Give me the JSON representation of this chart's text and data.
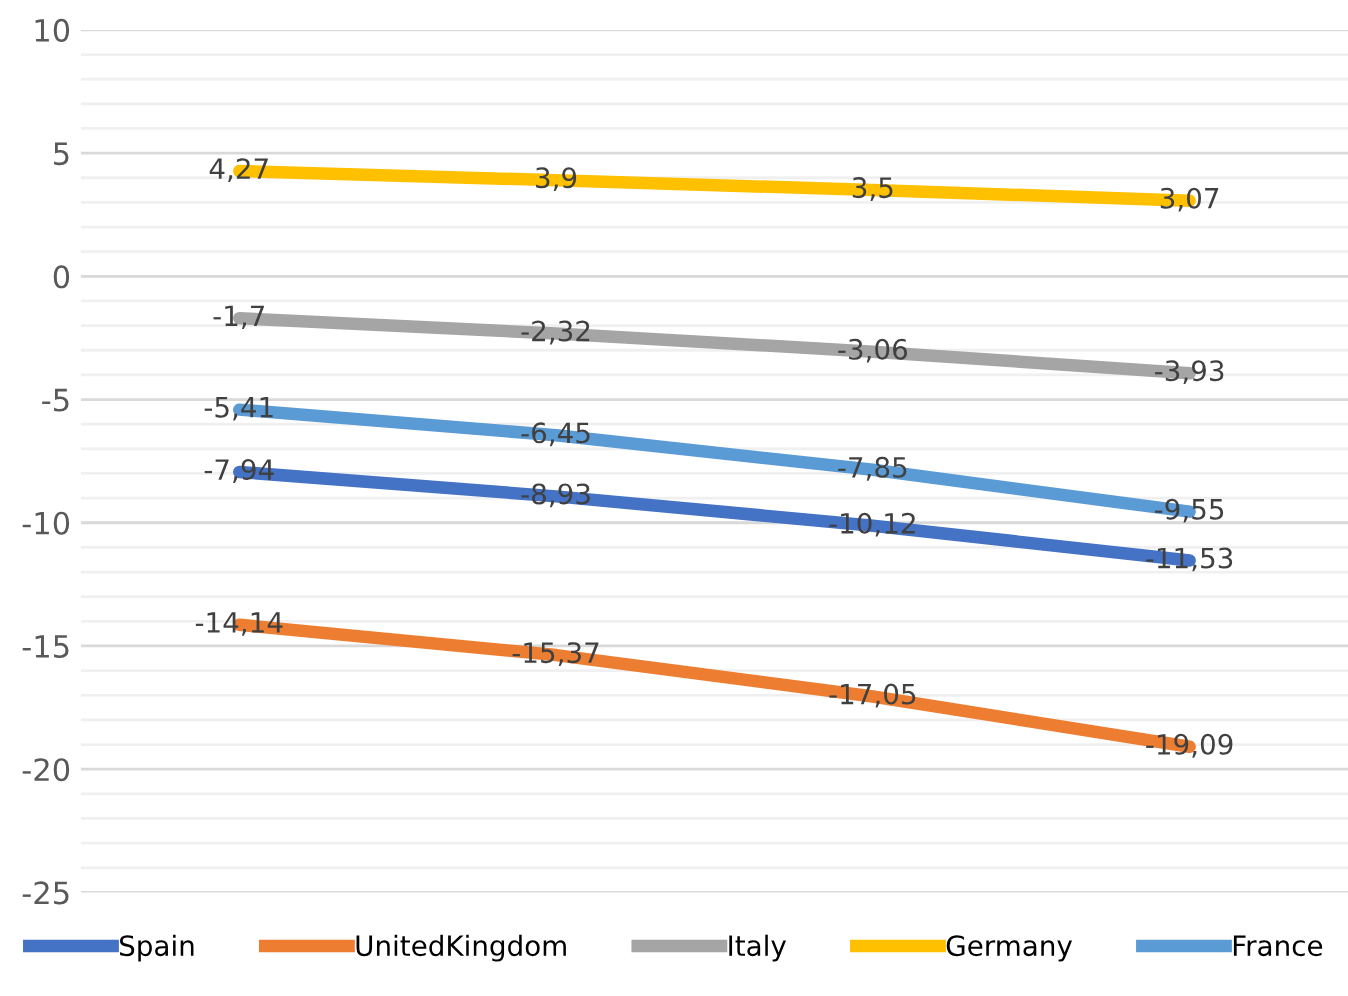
{
  "chart_data": {
    "type": "line",
    "categories": [
      null,
      null,
      null,
      null
    ],
    "series": [
      {
        "name": "Spain",
        "color": "#4472c4",
        "values": [
          -7.94,
          -8.93,
          -10.12,
          -11.53
        ],
        "value_labels": [
          "-7,94",
          "-8,93",
          "-10,12",
          "-11,53"
        ]
      },
      {
        "name": "UnitedKingdom",
        "color": "#ed7d31",
        "values": [
          -14.14,
          -15.37,
          -17.05,
          -19.09
        ],
        "value_labels": [
          "-14,14",
          "-15,37",
          "-17,05",
          "-19,09"
        ]
      },
      {
        "name": "Italy",
        "color": "#a5a5a5",
        "values": [
          -1.7,
          -2.32,
          -3.06,
          -3.93
        ],
        "value_labels": [
          "-1,7",
          "-2,32",
          "-3,06",
          "-3,93"
        ]
      },
      {
        "name": "Germany",
        "color": "#ffc000",
        "values": [
          4.27,
          3.9,
          3.5,
          3.07
        ],
        "value_labels": [
          "4,27",
          "3,9",
          "3,5",
          "3,07"
        ]
      },
      {
        "name": "France",
        "color": "#5b9bd5",
        "values": [
          -5.41,
          -6.45,
          -7.85,
          -9.55
        ],
        "value_labels": [
          "-5,41",
          "-6,45",
          "-7,85",
          "-9,55"
        ]
      }
    ],
    "ylim": [
      -25,
      10
    ],
    "yticks": [
      -25,
      {
        "value": -24,
        "label": null
      },
      {
        "value": -23,
        "label": null
      },
      {
        "value": -22,
        "label": null
      },
      {
        "value": -21,
        "label": null
      },
      -20,
      {
        "value": -19,
        "label": null
      },
      {
        "value": -18,
        "label": null
      },
      {
        "value": -17,
        "label": null
      },
      {
        "value": -16,
        "label": null
      },
      -15,
      {
        "value": -14,
        "label": null
      },
      {
        "value": -13,
        "label": null
      },
      {
        "value": -12,
        "label": null
      },
      {
        "value": -11,
        "label": null
      },
      -10,
      {
        "value": -9,
        "label": null
      },
      {
        "value": -8,
        "label": null
      },
      {
        "value": -7,
        "label": null
      },
      {
        "value": -6,
        "label": null
      },
      -5,
      {
        "value": -4,
        "label": null
      },
      {
        "value": -3,
        "label": null
      },
      {
        "value": -2,
        "label": null
      },
      {
        "value": -1,
        "label": null
      },
      0,
      {
        "value": 1,
        "label": null
      },
      {
        "value": 2,
        "label": null
      },
      {
        "value": 3,
        "label": null
      },
      {
        "value": 4,
        "label": null
      },
      5,
      {
        "value": 6,
        "label": null
      },
      {
        "value": 7,
        "label": null
      },
      {
        "value": 8,
        "label": null
      },
      {
        "value": 9,
        "label": null
      },
      10
    ],
    "grid": "y",
    "legend": "bottom",
    "marker": "none",
    "line_style": "solid"
  }
}
